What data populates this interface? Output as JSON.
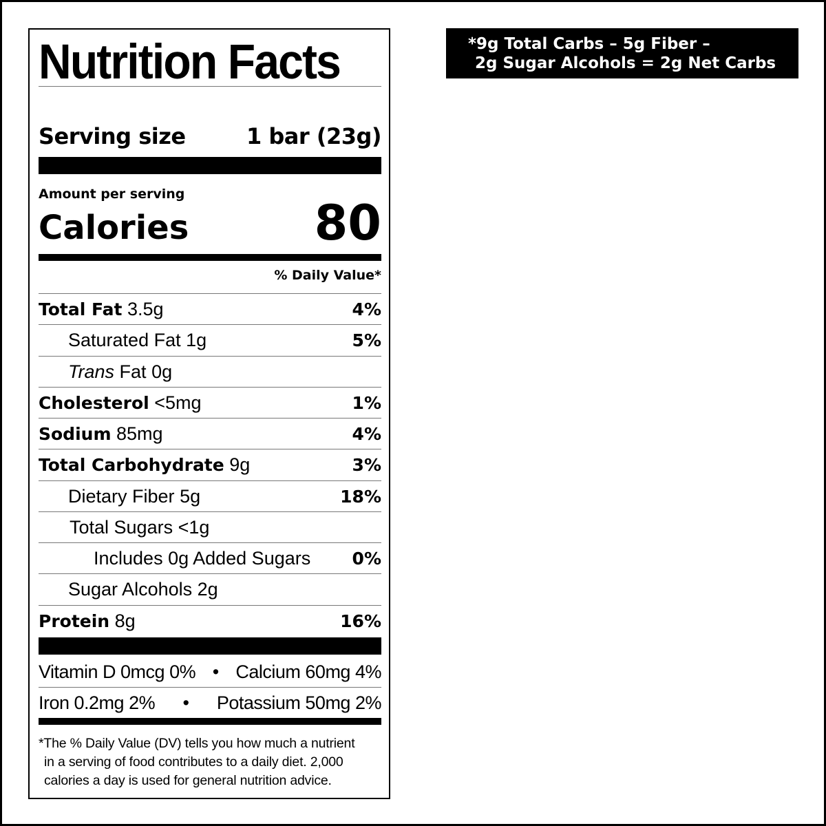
{
  "title": "Nutrition Facts",
  "serving": {
    "label": "Serving size",
    "value": "1 bar (23g)"
  },
  "amount_per_serving": "Amount per serving",
  "calories": {
    "label": "Calories",
    "value": "80"
  },
  "dv_header": "% Daily Value*",
  "nutrients": [
    {
      "name": "Total Fat",
      "amount": "3.5g",
      "dv": "4%"
    },
    {
      "name": "Saturated Fat",
      "amount": "1g",
      "dv": "5%"
    },
    {
      "name": "Trans",
      "name_suffix": "Fat",
      "amount": "0g",
      "dv": ""
    },
    {
      "name": "Cholesterol",
      "amount": "<5mg",
      "dv": "1%"
    },
    {
      "name": "Sodium",
      "amount": "85mg",
      "dv": "4%"
    },
    {
      "name": "Total Carbohydrate",
      "amount": "9g",
      "dv": "3%"
    },
    {
      "name": "Dietary Fiber",
      "amount": "5g",
      "dv": "18%"
    },
    {
      "name": "Total Sugars",
      "amount": "<1g",
      "dv": ""
    },
    {
      "name": "Includes 0g Added Sugars",
      "amount": "",
      "dv": "0%"
    },
    {
      "name": "Sugar Alcohols",
      "amount": "2g",
      "dv": ""
    },
    {
      "name": "Protein",
      "amount": "8g",
      "dv": "16%"
    }
  ],
  "vitamins": [
    {
      "left": "Vitamin D 0mcg 0%",
      "sep": "•",
      "right": "Calcium 60mg 4%"
    },
    {
      "left": "Iron 0.2mg 2%",
      "sep": "•",
      "right": "Potassium 50mg 2%"
    }
  ],
  "footnote": [
    "*The % Daily Value (DV) tells you how much a nutrient",
    "in a serving of food contributes to a daily diet. 2,000",
    "calories a day is used for general nutrition advice."
  ],
  "net_carbs_note": [
    "*9g Total Carbs – 5g Fiber –",
    "2g Sugar Alcohols = 2g Net Carbs"
  ]
}
